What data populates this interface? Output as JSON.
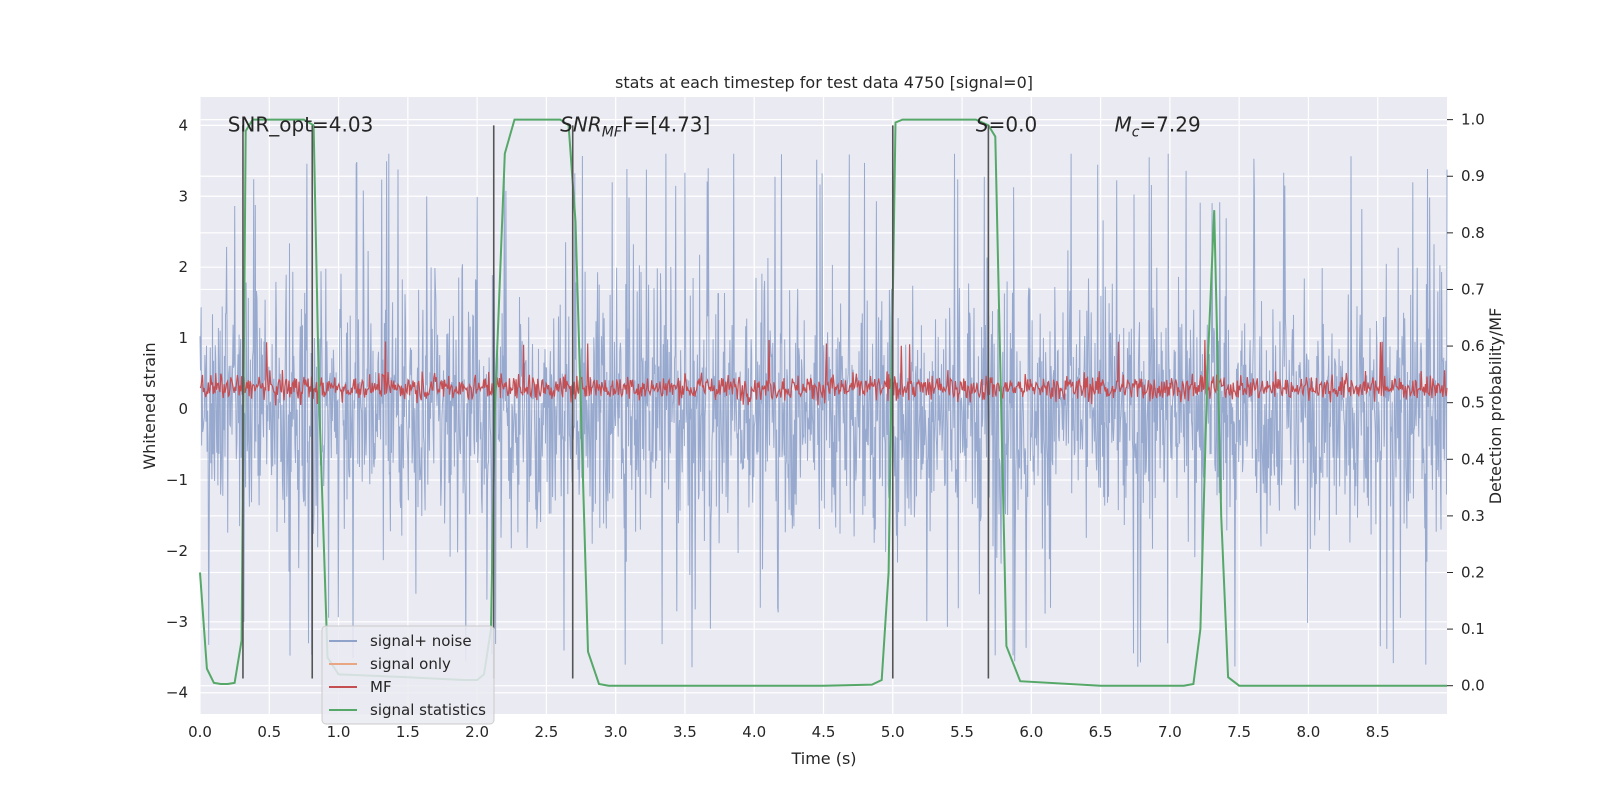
{
  "chart_data": {
    "type": "line",
    "title": "stats at each timestep for test data 4750 [signal=0]",
    "xlabel": "Time (s)",
    "ylabel_left": "Whitened strain",
    "ylabel_right": "Detection probability/MF",
    "xlim": [
      0.0,
      9.0
    ],
    "ylim_left": [
      -4.3,
      4.4
    ],
    "ylim_right": [
      -0.05,
      1.04
    ],
    "x_ticks": [
      "0.0",
      "0.5",
      "1.0",
      "1.5",
      "2.0",
      "2.5",
      "3.0",
      "3.5",
      "4.0",
      "4.5",
      "5.0",
      "5.5",
      "6.0",
      "6.5",
      "7.0",
      "7.5",
      "8.0",
      "8.5"
    ],
    "y_ticks_left": [
      "4",
      "3",
      "2",
      "1",
      "0",
      "−1",
      "−2",
      "−3",
      "−4"
    ],
    "y_ticks_right": [
      "1.0",
      "0.9",
      "0.8",
      "0.7",
      "0.6",
      "0.5",
      "0.4",
      "0.3",
      "0.2",
      "0.1",
      "0.0"
    ],
    "annotations": [
      {
        "text": "SNR_opt=4.03",
        "x": 0.2,
        "y": 4.0
      },
      {
        "text_main": "SNR",
        "text_sub": "MF",
        "text_rest": "F=[4.73]",
        "x": 2.6,
        "y": 4.0
      },
      {
        "text_main": "S",
        "text_sub": "",
        "text_rest": "=0.0",
        "x": 5.6,
        "y": 4.0
      },
      {
        "text_main": "M",
        "text_sub": "c",
        "text_rest": "=7.29",
        "x": 6.6,
        "y": 4.0
      }
    ],
    "vertical_lines": [
      0.31,
      0.81,
      2.12,
      2.69,
      5.0,
      5.69
    ],
    "vertical_line_range": [
      -3.8,
      4.0
    ],
    "series": [
      {
        "name": "signal+ noise",
        "color": "#8ea2ca",
        "description": "whitened strain noise, roughly within [-3.8, 3.6]"
      },
      {
        "name": "signal only",
        "color": "#e8a683",
        "values": []
      },
      {
        "name": "MF",
        "color": "#c44e52",
        "description": "matched filter output, roughly within [0.05, 0.75]"
      },
      {
        "name": "signal statistics",
        "color": "#55a868",
        "axis": "right",
        "x": [
          0.0,
          0.05,
          0.1,
          0.15,
          0.2,
          0.25,
          0.3,
          0.33,
          0.38,
          0.45,
          0.55,
          0.65,
          0.75,
          0.82,
          0.86,
          0.92,
          1.0,
          1.5,
          1.9,
          2.0,
          2.05,
          2.1,
          2.13,
          2.2,
          2.27,
          2.35,
          2.5,
          2.6,
          2.66,
          2.71,
          2.8,
          2.88,
          2.95,
          3.5,
          4.5,
          4.85,
          4.92,
          4.97,
          5.02,
          5.07,
          5.2,
          5.4,
          5.6,
          5.69,
          5.74,
          5.82,
          5.92,
          6.5,
          7.1,
          7.17,
          7.22,
          7.27,
          7.32,
          7.37,
          7.42,
          7.5,
          8.0,
          9.0
        ],
        "values": [
          0.2,
          0.03,
          0.005,
          0.003,
          0.003,
          0.005,
          0.08,
          0.98,
          1.0,
          1.0,
          1.0,
          1.0,
          1.0,
          0.99,
          0.5,
          0.05,
          0.02,
          0.015,
          0.01,
          0.01,
          0.02,
          0.1,
          0.5,
          0.94,
          1.0,
          1.0,
          1.0,
          1.0,
          0.99,
          0.82,
          0.06,
          0.003,
          0.0,
          0.0,
          0.0,
          0.002,
          0.01,
          0.2,
          0.995,
          1.0,
          1.0,
          1.0,
          1.0,
          0.99,
          0.97,
          0.07,
          0.008,
          0.0,
          0.0,
          0.003,
          0.1,
          0.55,
          0.84,
          0.3,
          0.015,
          0.0,
          0.0,
          0.0
        ]
      }
    ],
    "legend": "lower-left",
    "grid": true,
    "background": "#eaeaf2"
  }
}
